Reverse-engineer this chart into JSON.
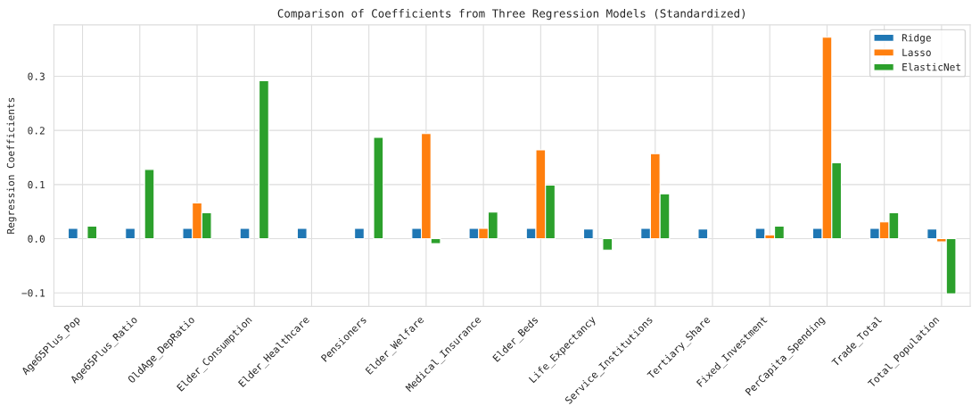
{
  "chart_data": {
    "type": "bar",
    "title": "Comparison of Coefficients from Three Regression Models (Standardized)",
    "ylabel": "Regression Coefficients",
    "categories": [
      "Age65Plus_Pop",
      "Age65Plus_Ratio",
      "OldAge_DepRatio",
      "Elder_Consumption",
      "Elder_Healthcare",
      "Pensioners",
      "Elder_Welfare",
      "Medical_Insurance",
      "Elder_Beds",
      "Life_Expectancy",
      "Service_Institutions",
      "Tertiary_Share",
      "Fixed_Investment",
      "PerCapita_Spending",
      "Trade_Total",
      "Total_Population"
    ],
    "series": [
      {
        "name": "Ridge",
        "color": "#1f77b4",
        "values": [
          0.019,
          0.019,
          0.019,
          0.019,
          0.019,
          0.019,
          0.019,
          0.019,
          0.019,
          0.018,
          0.019,
          0.018,
          0.019,
          0.019,
          0.019,
          0.018
        ]
      },
      {
        "name": "Lasso",
        "color": "#ff7f0e",
        "values": [
          null,
          null,
          0.066,
          null,
          null,
          null,
          0.194,
          0.019,
          0.164,
          null,
          0.157,
          null,
          0.007,
          0.372,
          0.031,
          -0.006
        ]
      },
      {
        "name": "ElasticNet",
        "color": "#2ca02c",
        "values": [
          0.023,
          0.128,
          0.048,
          0.292,
          null,
          0.187,
          -0.009,
          0.049,
          0.099,
          -0.021,
          0.083,
          null,
          0.023,
          0.14,
          0.048,
          -0.102
        ]
      }
    ],
    "ylim": [
      -0.125,
      0.395
    ],
    "yticks": [
      {
        "value": -0.1,
        "label": "−0.1"
      },
      {
        "value": 0.0,
        "label": "0.0"
      },
      {
        "value": 0.1,
        "label": "0.1"
      },
      {
        "value": 0.2,
        "label": "0.2"
      },
      {
        "value": 0.3,
        "label": "0.3"
      }
    ],
    "grid": true,
    "legend": "top right"
  }
}
